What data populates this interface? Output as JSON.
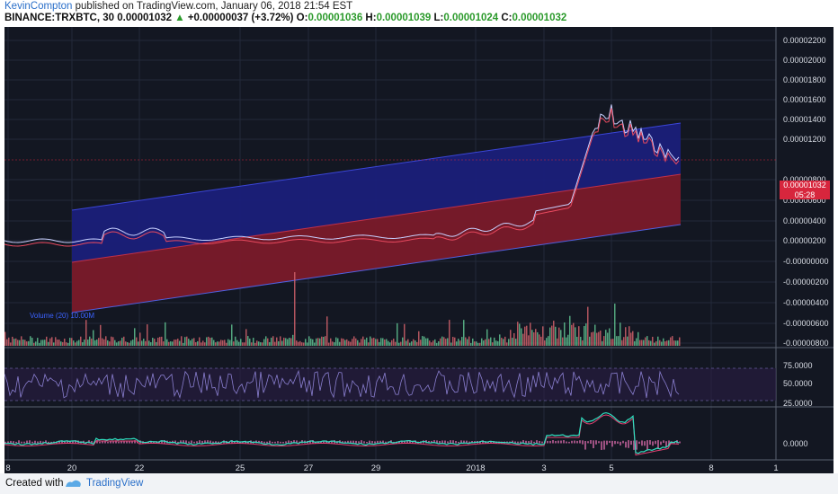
{
  "header": {
    "author": "KevinCompton",
    "published_text": " published on TradingView.com, January 06, 2018 21:54 EST",
    "symbol": "BINANCE:TRXBTC, 30",
    "last_price": "0.00001032",
    "change": "+0.00000037 (+3.72%)",
    "open_label": "O:",
    "open": "0.00001036",
    "high_label": "H:",
    "high": "0.00001039",
    "low_label": "L:",
    "low": "0.00001024",
    "close_label": "C:",
    "close": "0.00001032"
  },
  "price_axis": [
    "0.00002200",
    "0.00002000",
    "0.00001800",
    "0.00001600",
    "0.00001400",
    "0.00001200",
    "0.00000800",
    "0.00000600",
    "0.00000400",
    "0.00000200",
    "-0.00000000",
    "-0.00000200",
    "-0.00000400",
    "-0.00000600",
    "-0.00000800"
  ],
  "price_tag": {
    "price": "0.00001032",
    "countdown": "05:28"
  },
  "volume_legend": "Volume (20) 10.00M",
  "rsi_axis": [
    "75.0000",
    "50.0000",
    "25.0000"
  ],
  "macd_axis": [
    "0.0000"
  ],
  "time_axis": [
    "8",
    "20",
    "22",
    "25",
    "27",
    "29",
    "2018",
    "3",
    "5",
    "8",
    "1"
  ],
  "colors": {
    "background": "#131722",
    "upper_channel": "#1a1f7a",
    "lower_channel": "#7a1a2a",
    "price_tag": "#d7263d",
    "rsi_line": "#8a7fd0",
    "macd_line": "#2fe0c0",
    "signal_line": "#e04070"
  },
  "footer": {
    "created_with": "Created with",
    "brand": "TradingView"
  }
}
